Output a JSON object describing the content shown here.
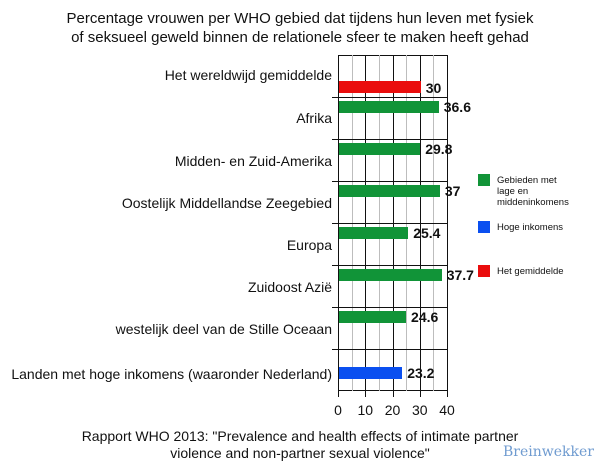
{
  "chart_data": {
    "type": "bar",
    "orientation": "horizontal",
    "title": "Percentage vrouwen per WHO gebied dat tijdens hun leven met fysiek of seksueel geweld binnen de relationele sfeer te maken heeft gehad",
    "title_lines": [
      "Percentage vrouwen per WHO gebied dat tijdens hun leven met fysiek",
      "of seksueel geweld binnen de relationele sfeer te maken heeft gehad"
    ],
    "categories": [
      "Het wereldwijd gemiddelde",
      "Afrika",
      "Midden- en Zuid-Amerika",
      "Oostelijk Middellandse Zeegebied",
      "Europa",
      "Zuidoost Azië",
      "westelijk deel van de Stille Oceaan",
      "Landen met hoge inkomens (waaronder Nederland)"
    ],
    "values": [
      30,
      36.6,
      29.8,
      37,
      25.4,
      37.7,
      24.6,
      23.2
    ],
    "value_labels": [
      "30",
      "36.6",
      "29.8",
      "37",
      "25.4",
      "37.7",
      "24.6",
      "23.2"
    ],
    "groups": [
      "average",
      "low-middle",
      "low-middle",
      "low-middle",
      "low-middle",
      "low-middle",
      "low-middle",
      "high"
    ],
    "xlabel": "",
    "ylabel": "",
    "xlim": [
      0,
      40
    ],
    "x_ticks": [
      "0",
      "10",
      "20",
      "30",
      "40"
    ],
    "grid": true,
    "legend_position": "right",
    "legend": [
      {
        "key": "low-middle",
        "label": "Gebieden met lage en middeninkomens",
        "lines": [
          "Gebieden met",
          "lage en",
          "middeninkomens"
        ],
        "color": "#119438"
      },
      {
        "key": "high",
        "label": "Hoge inkomens",
        "lines": [
          "Hoge inkomens"
        ],
        "color": "#0a4ff0"
      },
      {
        "key": "average",
        "label": "Het gemiddelde",
        "lines": [
          "Het gemiddelde"
        ],
        "color": "#ea0d0d"
      }
    ],
    "source_lines": [
      "Rapport WHO 2013: \"Prevalence and health effects of intimate partner",
      "violence and non-partner sexual violence\""
    ]
  },
  "colors": {
    "low-middle": "#119438",
    "high": "#0a4ff0",
    "average": "#ea0d0d"
  },
  "watermark": "Breinwekker"
}
